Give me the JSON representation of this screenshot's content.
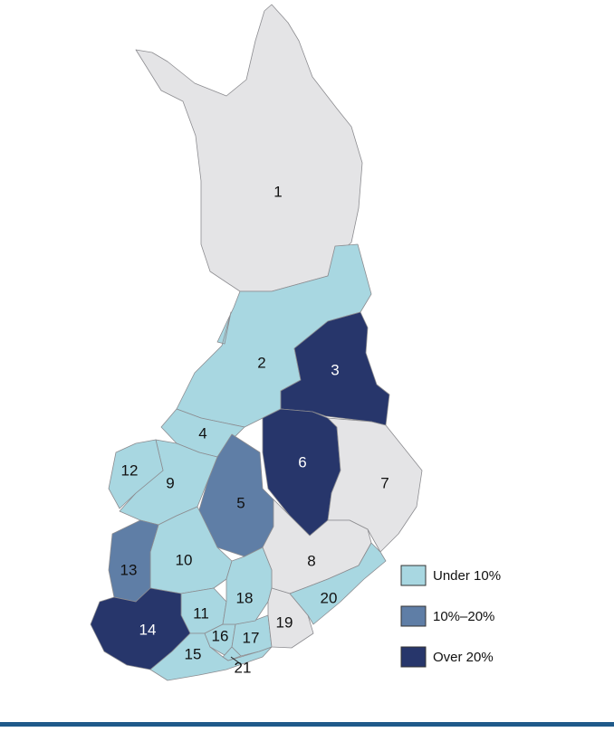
{
  "regions": [
    {
      "label": "1",
      "color": "#e4e4e6"
    },
    {
      "label": "2",
      "color": "#a8d7e1"
    },
    {
      "label": "3",
      "color": "#27366b"
    },
    {
      "label": "4",
      "color": "#a8d7e1"
    },
    {
      "label": "5",
      "color": "#5f7ea6"
    },
    {
      "label": "6",
      "color": "#27366b"
    },
    {
      "label": "7",
      "color": "#e4e4e6"
    },
    {
      "label": "8",
      "color": "#e4e4e6"
    },
    {
      "label": "9",
      "color": "#a8d7e1"
    },
    {
      "label": "10",
      "color": "#a8d7e1"
    },
    {
      "label": "11",
      "color": "#a8d7e1"
    },
    {
      "label": "12",
      "color": "#a8d7e1"
    },
    {
      "label": "13",
      "color": "#5f7ea6"
    },
    {
      "label": "14",
      "color": "#27366b"
    },
    {
      "label": "15",
      "color": "#a8d7e1"
    },
    {
      "label": "16",
      "color": "#a8d7e1"
    },
    {
      "label": "17",
      "color": "#a8d7e1"
    },
    {
      "label": "18",
      "color": "#a8d7e1"
    },
    {
      "label": "19",
      "color": "#e4e4e6"
    },
    {
      "label": "20",
      "color": "#a8d7e1"
    },
    {
      "label": "21",
      "color": "#a8d7e1"
    }
  ],
  "legend": [
    {
      "label": "Under 10%",
      "color": "#a8d7e1"
    },
    {
      "label": "10%–20%",
      "color": "#5f7ea6"
    },
    {
      "label": "Over 20%",
      "color": "#27366b"
    }
  ]
}
